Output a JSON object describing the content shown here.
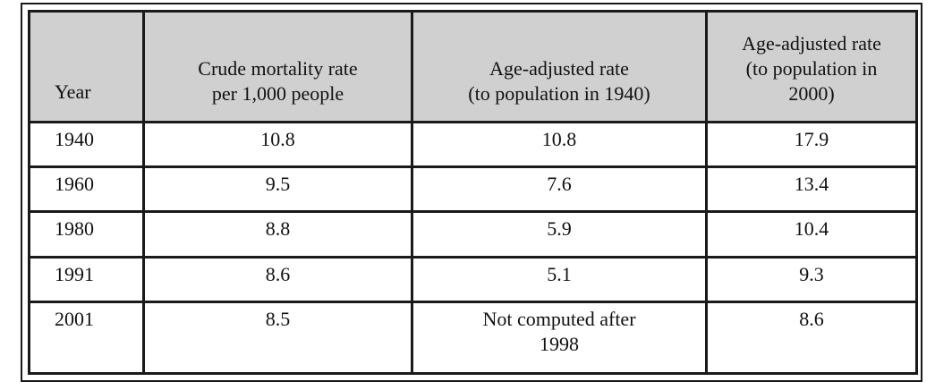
{
  "table": {
    "headers": {
      "year": "Year",
      "crude": [
        "Crude mortality rate",
        "per 1,000 people"
      ],
      "adj1940": [
        "Age-adjusted rate",
        "(to population in 1940)"
      ],
      "adj2000": [
        "Age-adjusted rate",
        "(to population in",
        "2000)"
      ]
    },
    "rows": [
      {
        "year": "1940",
        "crude": "10.8",
        "adj1940": "10.8",
        "adj2000": "17.9"
      },
      {
        "year": "1960",
        "crude": "9.5",
        "adj1940": "7.6",
        "adj2000": "13.4"
      },
      {
        "year": "1980",
        "crude": "8.8",
        "adj1940": "5.9",
        "adj2000": "10.4"
      },
      {
        "year": "1991",
        "crude": "8.6",
        "adj1940": "5.1",
        "adj2000": "9.3"
      },
      {
        "year": "2001",
        "crude": "8.5",
        "adj1940": [
          "Not computed after",
          "1998"
        ],
        "adj2000": "8.6"
      }
    ]
  },
  "colors": {
    "header_bg": "#d0d0d0",
    "border": "#1a1a1a"
  }
}
